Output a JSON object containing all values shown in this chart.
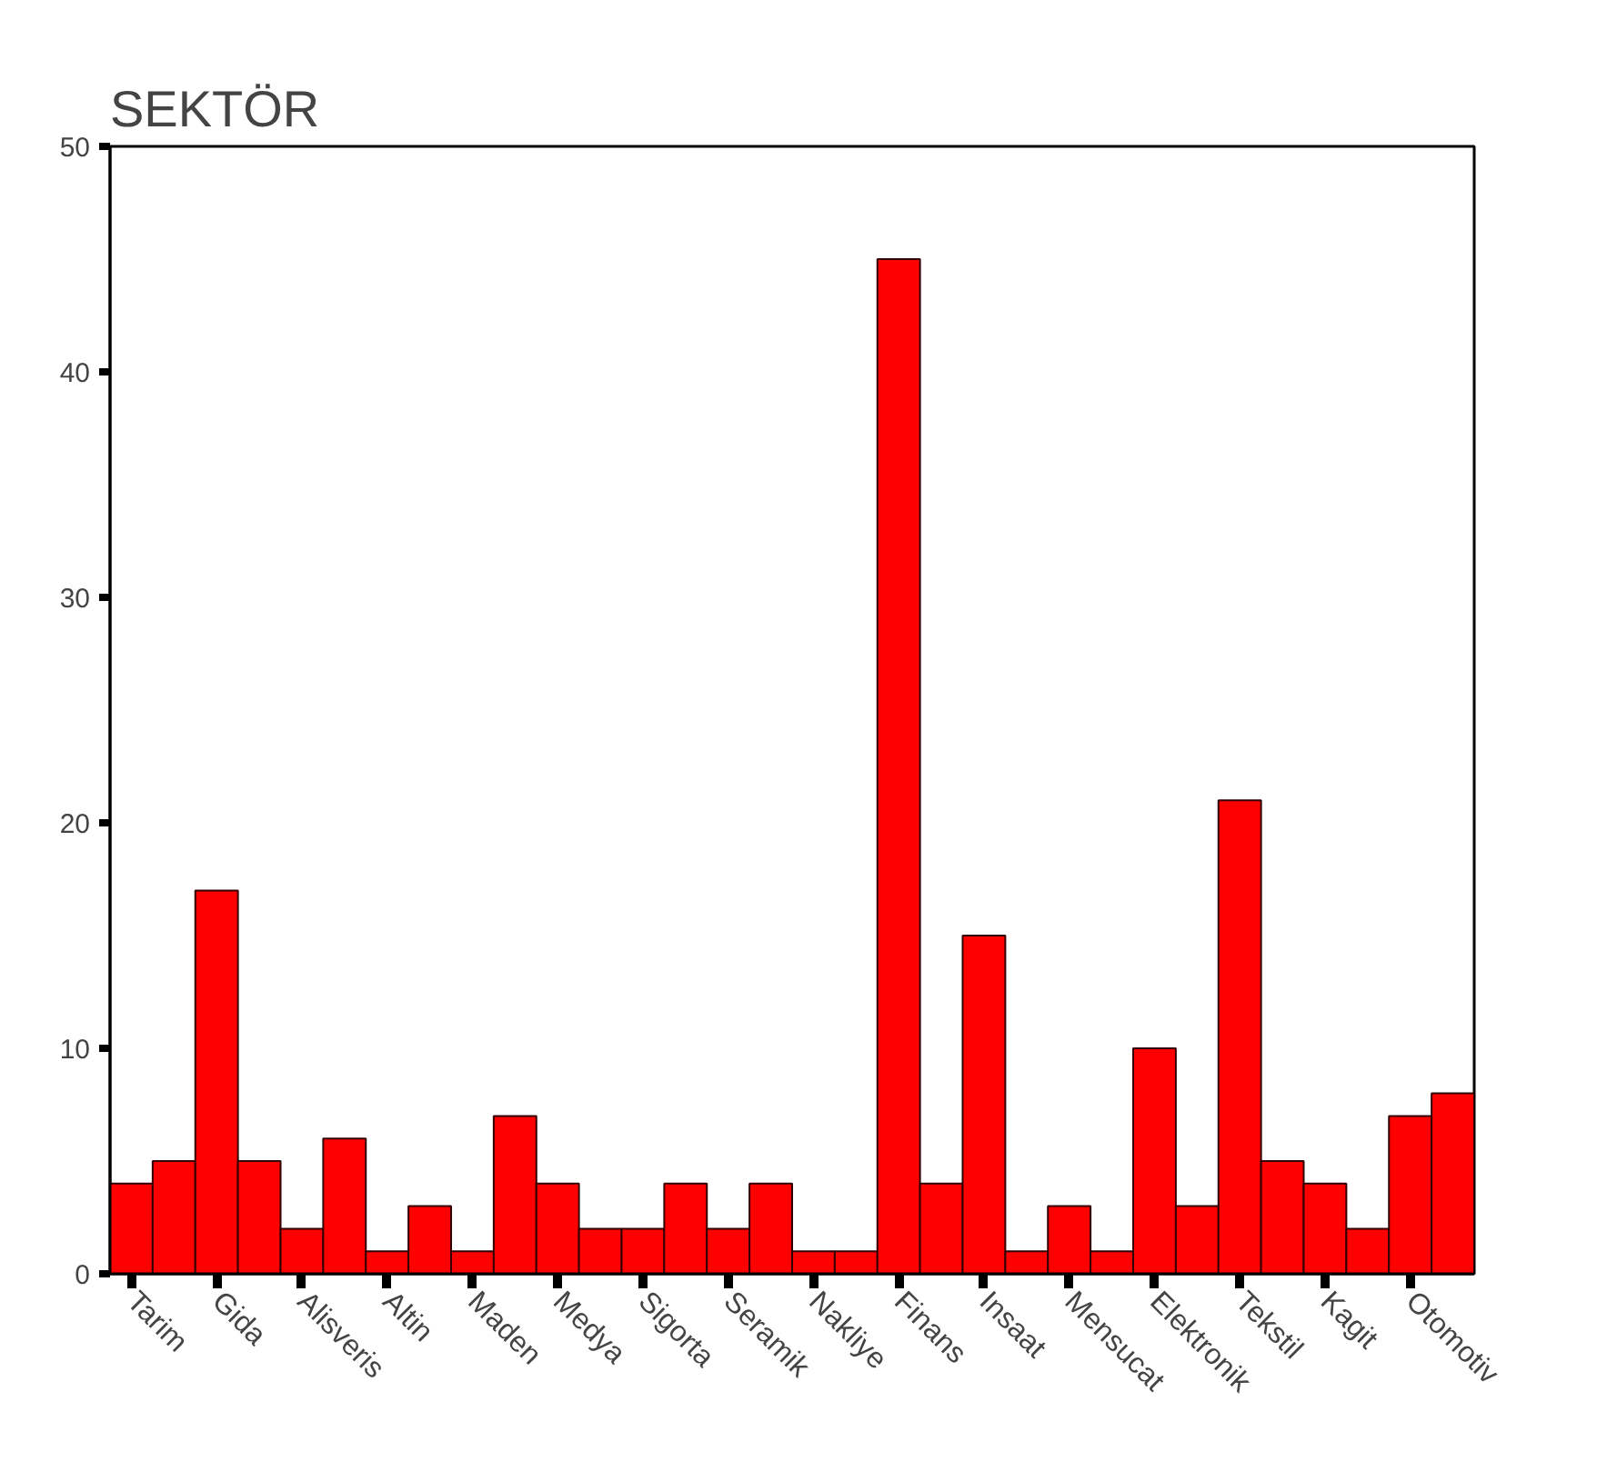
{
  "chart_data": {
    "type": "bar",
    "title": "SEKTÖR",
    "categories": [
      "Tarim",
      null,
      "Gida",
      null,
      "Alisveris",
      null,
      "Altin",
      null,
      "Maden",
      null,
      "Medya",
      null,
      "Sigorta",
      null,
      "Seramik",
      null,
      "Nakliye",
      null,
      "Finans",
      null,
      "Insaat",
      null,
      "Mensucat",
      null,
      "Elektronik",
      null,
      "Tekstil",
      null,
      "Kagit",
      null,
      "Otomotiv",
      null
    ],
    "values": [
      4,
      5,
      17,
      5,
      2,
      6,
      1,
      3,
      1,
      7,
      4,
      2,
      2,
      4,
      2,
      4,
      1,
      1,
      45,
      4,
      15,
      1,
      3,
      1,
      10,
      3,
      21,
      5,
      4,
      2,
      7,
      8
    ],
    "color": "#ff0000",
    "ylim": [
      0,
      50
    ],
    "yticks": [
      0,
      10,
      20,
      30,
      40,
      50
    ],
    "grid": false
  }
}
